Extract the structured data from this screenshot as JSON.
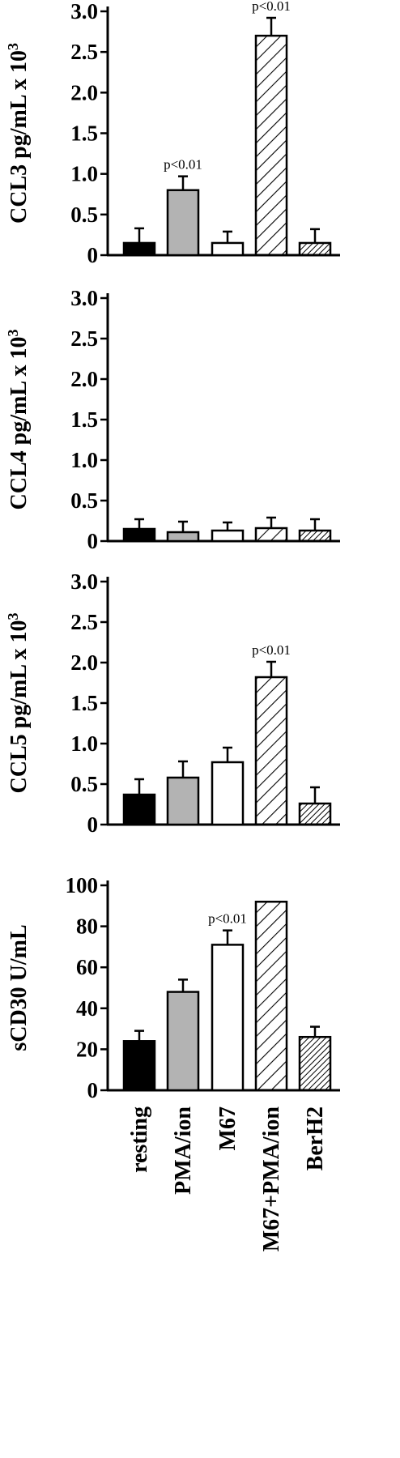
{
  "figure": {
    "categories": [
      "resting",
      "PMA/ion",
      "M67",
      "M67+PMA/ion",
      "BerH2"
    ],
    "bar_styles": [
      {
        "fill": "#000000",
        "pattern": "solid"
      },
      {
        "fill": "#b3b3b3",
        "pattern": "solid"
      },
      {
        "fill": "#ffffff",
        "pattern": "none"
      },
      {
        "fill": "#ffffff",
        "pattern": "wide-hatch"
      },
      {
        "fill": "#ffffff",
        "pattern": "dense-hatch"
      }
    ]
  },
  "chart_data": [
    {
      "type": "bar",
      "ylabel": "CCL3 pg/mL x 10",
      "ylabel_sup": "3",
      "ylim": [
        0,
        3.0
      ],
      "yticks": [
        "0",
        "0.5",
        "1.0",
        "1.5",
        "2.0",
        "2.5",
        "3.0"
      ],
      "categories": [
        "resting",
        "PMA/ion",
        "M67",
        "M67+PMA/ion",
        "BerH2"
      ],
      "values": [
        0.15,
        0.8,
        0.15,
        2.7,
        0.15
      ],
      "errors": [
        0.18,
        0.17,
        0.14,
        0.22,
        0.17
      ],
      "annotations": [
        "",
        "p<0.01",
        "",
        "p<0.01",
        ""
      ]
    },
    {
      "type": "bar",
      "ylabel": "CCL4 pg/mL x 10",
      "ylabel_sup": "3",
      "ylim": [
        0,
        3.0
      ],
      "yticks": [
        "0",
        "0.5",
        "1.0",
        "1.5",
        "2.0",
        "2.5",
        "3.0"
      ],
      "categories": [
        "resting",
        "PMA/ion",
        "M67",
        "M67+PMA/ion",
        "BerH2"
      ],
      "values": [
        0.15,
        0.11,
        0.13,
        0.16,
        0.13
      ],
      "errors": [
        0.12,
        0.13,
        0.1,
        0.13,
        0.14
      ],
      "annotations": [
        "",
        "",
        "",
        "",
        ""
      ]
    },
    {
      "type": "bar",
      "ylabel": "CCL5 pg/mL x 10",
      "ylabel_sup": "3",
      "ylim": [
        0,
        3.0
      ],
      "yticks": [
        "0",
        "0.5",
        "1.0",
        "1.5",
        "2.0",
        "2.5",
        "3.0"
      ],
      "categories": [
        "resting",
        "PMA/ion",
        "M67",
        "M67+PMA/ion",
        "BerH2"
      ],
      "values": [
        0.37,
        0.58,
        0.77,
        1.82,
        0.26
      ],
      "errors": [
        0.19,
        0.2,
        0.18,
        0.19,
        0.2
      ],
      "annotations": [
        "",
        "",
        "",
        "p<0.01",
        ""
      ]
    },
    {
      "type": "bar",
      "ylabel": "sCD30  U/mL",
      "ylabel_sup": "",
      "ylim": [
        0,
        100
      ],
      "yticks": [
        "0",
        "20",
        "40",
        "60",
        "80",
        "100"
      ],
      "categories": [
        "resting",
        "PMA/ion",
        "M67",
        "M67+PMA/ion",
        "BerH2"
      ],
      "values": [
        24,
        48,
        71,
        92,
        26
      ],
      "errors": [
        5,
        6,
        7,
        0,
        5
      ],
      "annotations": [
        "",
        "",
        "p<0.01",
        "",
        ""
      ]
    }
  ]
}
